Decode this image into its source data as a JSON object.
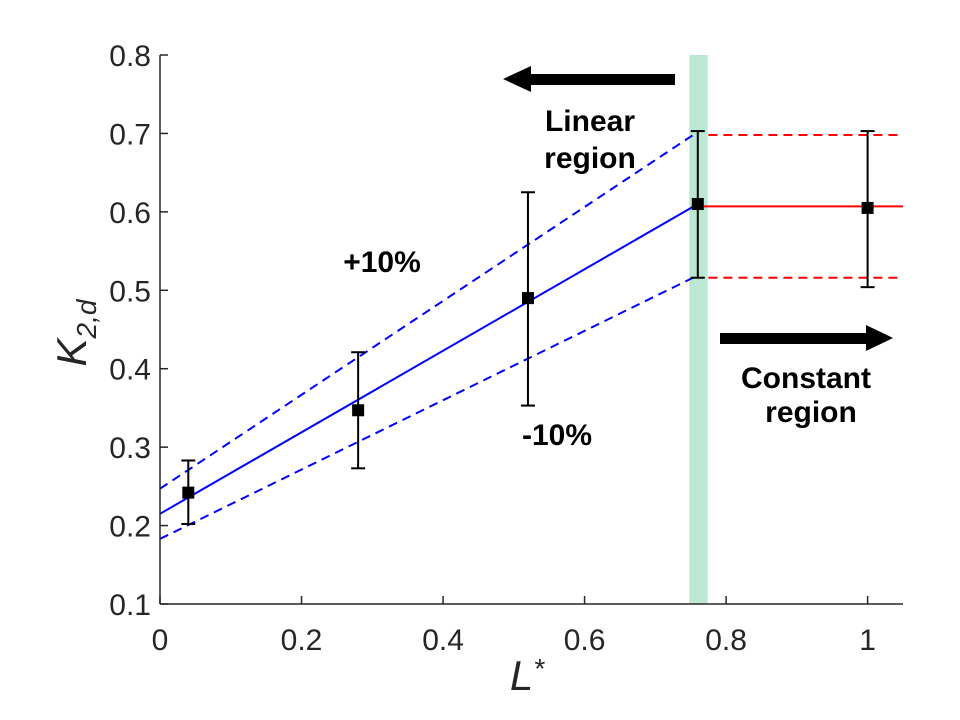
{
  "chart_data": {
    "type": "scatter",
    "xlabel": {
      "text": "L",
      "sup": "*"
    },
    "ylabel": {
      "text": "K",
      "sub": "2,d"
    },
    "xlim": [
      0,
      1.05
    ],
    "ylim": [
      0.1,
      0.8
    ],
    "xticks": [
      0,
      0.2,
      0.4,
      0.6,
      0.8,
      1
    ],
    "xtick_labels": [
      "0",
      "0.2",
      "0.4",
      "0.6",
      "0.8",
      "1"
    ],
    "yticks": [
      0.1,
      0.2,
      0.3,
      0.4,
      0.5,
      0.6,
      0.7,
      0.8
    ],
    "ytick_labels": [
      "0.1",
      "0.2",
      "0.3",
      "0.4",
      "0.5",
      "0.6",
      "0.7",
      "0.8"
    ],
    "grid": false,
    "points": {
      "color": "#000000",
      "x": [
        0.04,
        0.28,
        0.52,
        0.76,
        1.0
      ],
      "y": [
        0.242,
        0.347,
        0.49,
        0.61,
        0.605
      ],
      "y_low": [
        0.202,
        0.273,
        0.353,
        0.516,
        0.504
      ],
      "y_high": [
        0.283,
        0.421,
        0.625,
        0.703,
        0.703
      ]
    },
    "lines": [
      {
        "x": [
          0,
          0.76
        ],
        "y": [
          0.215,
          0.61
        ],
        "color": "#0000ff",
        "dashed": false
      },
      {
        "x": [
          0,
          0.76
        ],
        "y": [
          0.247,
          0.702
        ],
        "color": "#0000ff",
        "dashed": true
      },
      {
        "x": [
          0,
          0.76
        ],
        "y": [
          0.183,
          0.519
        ],
        "color": "#0000ff",
        "dashed": true
      },
      {
        "x": [
          0.76,
          1.05
        ],
        "y": [
          0.607,
          0.607
        ],
        "color": "#ff0000",
        "dashed": false
      },
      {
        "x": [
          0.775,
          1.05
        ],
        "y": [
          0.698,
          0.698
        ],
        "color": "#ff0000",
        "dashed": true
      },
      {
        "x": [
          0.775,
          1.05
        ],
        "y": [
          0.516,
          0.516
        ],
        "color": "#ff0000",
        "dashed": true
      }
    ],
    "highlight_band": {
      "x": [
        0.748,
        0.774
      ],
      "color": "#bce8d3"
    },
    "annotations": [
      {
        "lines": [
          "Linear",
          "region"
        ],
        "arrow": "left"
      },
      {
        "lines": [
          "+10%"
        ]
      },
      {
        "lines": [
          "-10%"
        ]
      },
      {
        "lines": [
          "Constant",
          "region"
        ],
        "arrow": "right"
      }
    ]
  }
}
